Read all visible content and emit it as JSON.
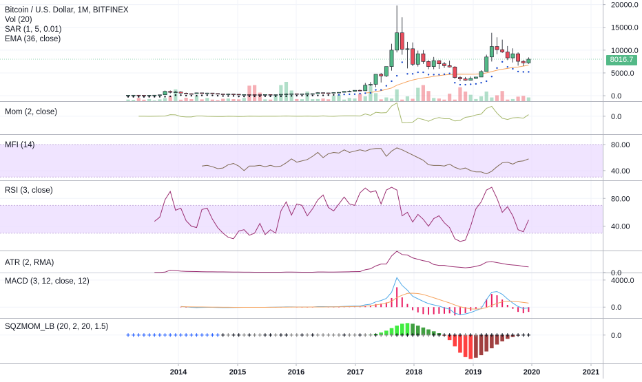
{
  "price_badge": "8016.7",
  "panes": [
    {
      "id": "main",
      "labels": [
        "Bitcoin / U.S. Dollar, 1M, BITFINEX",
        "Vol (20)",
        "SAR (1, 5, 0.01)",
        "EMA (36, close)"
      ],
      "ticks": [
        "20000.0",
        "15000.0",
        "10000.0",
        "5000.0",
        "0.0"
      ]
    },
    {
      "id": "mom",
      "labels": [
        "Mom (2, close)"
      ],
      "ticks": [
        "0.0"
      ]
    },
    {
      "id": "mfi",
      "labels": [
        "MFI (14)"
      ],
      "ticks": [
        "80.00",
        "40.00"
      ]
    },
    {
      "id": "rsi",
      "labels": [
        "RSI (3, close)"
      ],
      "ticks": [
        "80.00",
        "40.00"
      ]
    },
    {
      "id": "atr",
      "labels": [
        "ATR (2, RMA)"
      ],
      "ticks": [
        "0.0"
      ]
    },
    {
      "id": "macd",
      "labels": [
        "MACD (3, 12, close, 12)"
      ],
      "ticks": [
        "4000.0",
        "0.0"
      ]
    },
    {
      "id": "sqz",
      "labels": [
        "SQZMOM_LB (20, 2, 20, 1.5)"
      ],
      "ticks": [
        "0.0"
      ]
    }
  ],
  "x_axis_labels": [
    "2014",
    "2015",
    "2016",
    "2017",
    "2018",
    "2019",
    "2020",
    "2021"
  ],
  "colors": {
    "up": "#53b987",
    "down": "#eb4d5c",
    "ema": "#f6a35d",
    "sar": "#1848cc",
    "mom": "#a5b76b",
    "mfi": "#7f6a53",
    "rsi": "#9b2f72",
    "atr": "#9b2f72",
    "macd": "#4fa9e8",
    "signal": "#f6a35d",
    "band": "#ead9ff"
  },
  "chart_data": [
    {
      "type": "candlestick",
      "title": "Bitcoin / U.S. Dollar, 1M, BITFINEX",
      "ylim": [
        -1200,
        21000
      ],
      "x_start": "2013-04",
      "x_end": "2019-12",
      "candles": [
        [
          100,
          130,
          70,
          110
        ],
        [
          110,
          140,
          80,
          120
        ],
        [
          120,
          125,
          65,
          95
        ],
        [
          95,
          110,
          70,
          90
        ],
        [
          90,
          120,
          85,
          105
        ],
        [
          105,
          145,
          95,
          125
        ],
        [
          125,
          210,
          100,
          200
        ],
        [
          200,
          1150,
          190,
          950
        ],
        [
          950,
          1150,
          500,
          740
        ],
        [
          740,
          1000,
          700,
          820
        ],
        [
          820,
          960,
          500,
          560
        ],
        [
          560,
          680,
          380,
          450
        ],
        [
          450,
          500,
          350,
          440
        ],
        [
          440,
          660,
          430,
          630
        ],
        [
          630,
          650,
          500,
          575
        ],
        [
          575,
          650,
          540,
          590
        ],
        [
          590,
          600,
          440,
          480
        ],
        [
          480,
          520,
          350,
          385
        ],
        [
          385,
          420,
          280,
          330
        ],
        [
          330,
          450,
          330,
          375
        ],
        [
          375,
          380,
          300,
          320
        ],
        [
          320,
          325,
          160,
          215
        ],
        [
          215,
          270,
          210,
          255
        ],
        [
          255,
          300,
          205,
          245
        ],
        [
          245,
          260,
          220,
          235
        ],
        [
          235,
          265,
          225,
          230
        ],
        [
          230,
          290,
          230,
          265
        ],
        [
          265,
          300,
          210,
          230
        ],
        [
          230,
          245,
          210,
          235
        ],
        [
          235,
          330,
          230,
          310
        ],
        [
          310,
          500,
          310,
          375
        ],
        [
          375,
          460,
          360,
          430
        ],
        [
          430,
          440,
          355,
          365
        ],
        [
          365,
          440,
          360,
          415
        ],
        [
          415,
          450,
          400,
          450
        ],
        [
          450,
          470,
          410,
          455
        ],
        [
          455,
          780,
          450,
          670
        ],
        [
          670,
          680,
          520,
          620
        ],
        [
          620,
          630,
          560,
          575
        ],
        [
          575,
          720,
          570,
          700
        ],
        [
          700,
          760,
          690,
          745
        ],
        [
          745,
          1000,
          740,
          965
        ],
        [
          965,
          1150,
          760,
          970
        ],
        [
          970,
          1210,
          900,
          1190
        ],
        [
          1190,
          1350,
          1000,
          1080
        ],
        [
          1080,
          2800,
          1080,
          2300
        ],
        [
          2300,
          2990,
          2100,
          2500
        ],
        [
          2500,
          4500,
          1850,
          4700
        ],
        [
          4700,
          5000,
          2900,
          4350
        ],
        [
          4350,
          6400,
          4100,
          6400
        ],
        [
          6400,
          11400,
          5500,
          10000
        ],
        [
          10000,
          19800,
          9500,
          13800
        ],
        [
          13800,
          17200,
          9000,
          10200
        ],
        [
          10200,
          11800,
          6000,
          10300
        ],
        [
          10300,
          11700,
          6500,
          6900
        ],
        [
          6900,
          9900,
          6400,
          9200
        ],
        [
          9200,
          10000,
          7000,
          7500
        ],
        [
          7500,
          7800,
          5800,
          6400
        ],
        [
          6400,
          8500,
          5800,
          7700
        ],
        [
          7700,
          7800,
          5900,
          7000
        ],
        [
          7000,
          7400,
          6100,
          6600
        ],
        [
          6600,
          7700,
          6200,
          6300
        ],
        [
          6300,
          6500,
          3700,
          4000
        ],
        [
          4000,
          4300,
          3200,
          3700
        ],
        [
          3700,
          4100,
          3300,
          3400
        ],
        [
          3400,
          4200,
          3400,
          3800
        ],
        [
          3800,
          4100,
          3700,
          4100
        ],
        [
          4100,
          5600,
          4100,
          5300
        ],
        [
          5300,
          9000,
          5300,
          8500
        ],
        [
          8500,
          13800,
          7500,
          10800
        ],
        [
          10800,
          12800,
          9100,
          10100
        ],
        [
          10100,
          12300,
          9400,
          9600
        ],
        [
          9600,
          10900,
          7800,
          8300
        ],
        [
          8300,
          10400,
          7300,
          9200
        ],
        [
          9200,
          9500,
          6600,
          7550
        ],
        [
          7550,
          7800,
          6500,
          7200
        ],
        [
          7200,
          8400,
          7000,
          8016.7
        ]
      ],
      "volume": [
        300,
        250,
        600,
        280,
        400,
        150,
        340,
        580,
        900,
        2200,
        280,
        640,
        380,
        1000,
        340,
        600,
        300,
        200,
        450,
        500,
        380,
        340,
        600,
        2900,
        3000,
        1600,
        340,
        300,
        1000,
        3000,
        3600,
        2000,
        400,
        370,
        1800,
        370,
        400,
        500,
        350,
        1000,
        1200,
        300,
        600,
        500,
        1400,
        900,
        2800,
        1500,
        340,
        700,
        500,
        2200,
        300,
        900,
        450,
        2500,
        3000,
        1900,
        600,
        500,
        300,
        1400,
        300,
        2600,
        1800,
        1200,
        400,
        900,
        1800,
        700,
        1100,
        1900,
        300,
        400,
        850,
        1000,
        700
      ],
      "ema": [
        null,
        null,
        null,
        null,
        null,
        null,
        null,
        null,
        null,
        null,
        null,
        null,
        null,
        null,
        null,
        null,
        null,
        null,
        null,
        null,
        null,
        null,
        null,
        null,
        null,
        null,
        null,
        null,
        null,
        null,
        null,
        null,
        null,
        null,
        null,
        null,
        null,
        null,
        null,
        null,
        null,
        null,
        null,
        null,
        null,
        600,
        700,
        900,
        1100,
        1400,
        1700,
        2300,
        2700,
        3100,
        3450,
        3700,
        3900,
        4050,
        4250,
        4400,
        4550,
        4650,
        4700,
        4730,
        4700,
        4700,
        4720,
        4800,
        5000,
        5300,
        5600,
        5800,
        6000,
        6200,
        6300,
        6500,
        6700
      ],
      "sar": []
    },
    {
      "type": "line",
      "name": "Mom (2, close)",
      "ylim": [
        -10000,
        8000
      ],
      "values": [
        null,
        null,
        10,
        -10,
        -20,
        20,
        40,
        100,
        880,
        750,
        -150,
        -380,
        -370,
        130,
        130,
        -40,
        -110,
        -160,
        -150,
        -10,
        -60,
        -160,
        -110,
        30,
        20,
        -20,
        -10,
        20,
        0,
        30,
        160,
        60,
        0,
        -10,
        100,
        0,
        0,
        210,
        0,
        -40,
        130,
        260,
        240,
        225,
        130,
        1270,
        500,
        2200,
        1850,
        2000,
        5700,
        7400,
        -3600,
        -3500,
        -3300,
        -1100,
        -1800,
        -2800,
        -1500,
        -700,
        -1400,
        -1400,
        -2600,
        -2300,
        -600,
        -200,
        700,
        1200,
        4400,
        5500,
        1700,
        -1100,
        -1800,
        -900,
        -700,
        -1100,
        900
      ]
    },
    {
      "type": "line",
      "name": "MFI (14)",
      "ylim": [
        25,
        95
      ],
      "band": [
        30,
        80
      ],
      "values": [
        null,
        null,
        null,
        null,
        null,
        null,
        null,
        null,
        null,
        null,
        null,
        null,
        null,
        null,
        47,
        48,
        46,
        43,
        44,
        49,
        51,
        47,
        40,
        47,
        47,
        48,
        46,
        48,
        46,
        47,
        52,
        58,
        53,
        55,
        57,
        62,
        68,
        60,
        66,
        68,
        67,
        72,
        68,
        70,
        72,
        70,
        73,
        74,
        74,
        62,
        70,
        75,
        72,
        68,
        64,
        60,
        56,
        49,
        48,
        48,
        47,
        50,
        45,
        42,
        44,
        40,
        38,
        38,
        35,
        39,
        46,
        52,
        53,
        50,
        54,
        55,
        58
      ]
    },
    {
      "type": "line",
      "name": "RSI (3, close)",
      "ylim": [
        5,
        105
      ],
      "band": [
        30,
        70
      ],
      "values": [
        null,
        null,
        null,
        null,
        null,
        47,
        53,
        78,
        90,
        63,
        66,
        48,
        40,
        38,
        64,
        66,
        50,
        38,
        30,
        24,
        22,
        33,
        35,
        27,
        30,
        44,
        28,
        35,
        30,
        62,
        75,
        56,
        72,
        70,
        55,
        65,
        78,
        85,
        67,
        62,
        72,
        82,
        72,
        70,
        88,
        95,
        89,
        91,
        72,
        92,
        96,
        92,
        55,
        60,
        46,
        57,
        50,
        40,
        51,
        55,
        45,
        38,
        22,
        18,
        20,
        40,
        65,
        75,
        92,
        96,
        80,
        60,
        68,
        55,
        35,
        32,
        49
      ]
    },
    {
      "type": "line",
      "name": "ATR (2, RMA)",
      "ylim": [
        0,
        4500
      ],
      "values": [
        null,
        null,
        null,
        null,
        null,
        10,
        20,
        100,
        500,
        420,
        300,
        260,
        230,
        210,
        180,
        170,
        160,
        150,
        140,
        120,
        100,
        100,
        90,
        85,
        80,
        75,
        70,
        68,
        66,
        70,
        110,
        100,
        90,
        80,
        80,
        80,
        130,
        130,
        110,
        110,
        120,
        150,
        170,
        200,
        210,
        600,
        800,
        1400,
        1800,
        1800,
        3500,
        4500,
        3800,
        3700,
        3100,
        2800,
        2500,
        2300,
        1700,
        1500,
        1500,
        1300,
        1200,
        1100,
        1000,
        1100,
        1300,
        1600,
        2200,
        2300,
        2100,
        1900,
        1700,
        1600,
        1500,
        1300,
        1200
      ]
    },
    {
      "type": "line",
      "name": "MACD (3, 12, close, 12)",
      "ylim": [
        -1600,
        5000
      ],
      "macd": [
        null,
        null,
        null,
        null,
        null,
        null,
        null,
        null,
        null,
        null,
        100,
        40,
        -30,
        -60,
        -40,
        -20,
        -30,
        -50,
        -70,
        -60,
        -50,
        -40,
        -30,
        -20,
        -20,
        -25,
        -20,
        -10,
        -5,
        10,
        40,
        40,
        30,
        20,
        25,
        30,
        70,
        70,
        60,
        60,
        70,
        110,
        140,
        160,
        160,
        340,
        430,
        780,
        980,
        1290,
        2200,
        4350,
        3200,
        2500,
        1600,
        1230,
        850,
        520,
        330,
        160,
        -100,
        -300,
        -900,
        -1100,
        -1000,
        -800,
        -500,
        -200,
        1100,
        2200,
        2300,
        1900,
        1200,
        600,
        100,
        -200,
        -100
      ],
      "signal": [
        null,
        null,
        null,
        null,
        null,
        null,
        null,
        null,
        null,
        null,
        60,
        50,
        40,
        30,
        20,
        10,
        5,
        0,
        -10,
        -15,
        -20,
        -20,
        -20,
        -20,
        -20,
        -20,
        -20,
        -15,
        -10,
        -5,
        0,
        10,
        15,
        15,
        18,
        20,
        25,
        30,
        35,
        40,
        45,
        60,
        75,
        90,
        100,
        150,
        220,
        330,
        450,
        600,
        850,
        1420,
        1760,
        2030,
        2050,
        2010,
        1870,
        1630,
        1380,
        1130,
        870,
        620,
        320,
        60,
        -110,
        -270,
        -280,
        -260,
        -60,
        260,
        550,
        780,
        870,
        850,
        800,
        700,
        600
      ],
      "histogram": [
        null,
        null,
        null,
        null,
        null,
        null,
        null,
        null,
        null,
        null,
        40,
        -10,
        -70,
        -90,
        -60,
        -30,
        -35,
        -50,
        -60,
        -45,
        -30,
        -20,
        -10,
        0,
        0,
        -5,
        0,
        5,
        5,
        15,
        40,
        30,
        15,
        5,
        7,
        10,
        45,
        40,
        25,
        20,
        25,
        50,
        65,
        70,
        60,
        190,
        210,
        450,
        530,
        690,
        1350,
        2930,
        1440,
        470,
        -450,
        -780,
        -1020,
        -1110,
        -1050,
        -970,
        -970,
        -920,
        -1220,
        -1160,
        -890,
        -530,
        -220,
        60,
        1160,
        1940,
        1750,
        1120,
        330,
        -250,
        -700,
        -900,
        -700
      ]
    },
    {
      "type": "bar",
      "name": "SQZMOM_LB (20, 2, 20, 1.5)",
      "ylim": [
        -4500,
        2600
      ],
      "values": [
        0,
        0,
        0,
        0,
        0,
        0,
        0,
        0,
        0,
        0,
        0,
        0,
        0,
        0,
        0,
        0,
        0,
        0,
        0,
        0,
        0,
        0,
        0,
        0,
        0,
        0,
        0,
        0,
        0,
        0,
        0,
        0,
        0,
        0,
        0,
        0,
        0,
        0,
        0,
        0,
        0,
        0,
        0,
        0,
        0,
        20,
        80,
        200,
        400,
        700,
        1100,
        1500,
        1800,
        1900,
        1800,
        1500,
        1200,
        900,
        600,
        300,
        -100,
        -800,
        -1800,
        -2800,
        -3500,
        -3800,
        -3600,
        -3200,
        -2600,
        -2100,
        -1500,
        -1000,
        -600,
        -300,
        -100,
        0,
        0
      ],
      "dots": "p,p,p,p,p,p,p,p,p,p,p,p,p,p,p,p,p,p,b,g,b,b,g,b,g,g,b,b,g,b,b,g,g,b,g,b,g,g,g,g,g,b,g,g,b,g,g,b,g,g,g,b,b,b,b,b,g,g,b,b,b,b,b,b,g,b,g,b,b,b,b,b,b,b,b,b,b"
    }
  ]
}
